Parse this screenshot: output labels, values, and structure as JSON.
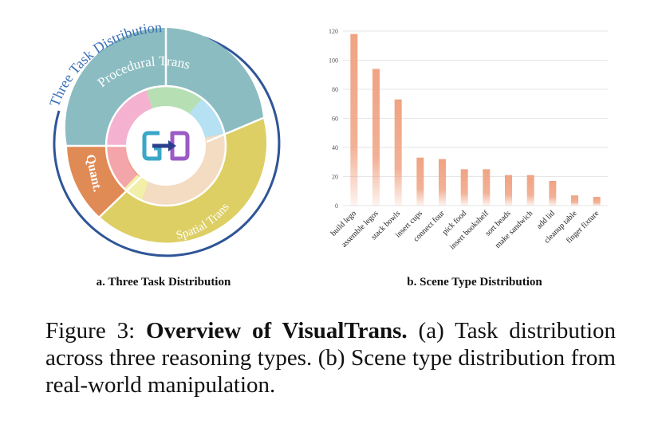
{
  "panel_a": {
    "arc_title": "Three Task Distribution",
    "subtitle": "a. Three Task Distribution",
    "segments": [
      "Procedural Trans",
      "Spatial Trans",
      "Quant."
    ],
    "colors": {
      "procedural": "#8bbcc1",
      "spatial": "#ddcf63",
      "quant": "#e08a55",
      "arc": "#2f5597",
      "title": "#3a6fb6"
    }
  },
  "panel_b": {
    "subtitle": "b. Scene Type Distribution",
    "bar_color": "#f0a383"
  },
  "chart_data": {
    "type": "bar",
    "categories": [
      "build lego",
      "assemble legos",
      "stack bowls",
      "insert cups",
      "connect four",
      "pick food",
      "insert bookshelf",
      "sort beads",
      "make sandwich",
      "add lid",
      "cleanup table",
      "finger fixture"
    ],
    "values": [
      118,
      94,
      73,
      33,
      32,
      25,
      25,
      21,
      21,
      17,
      7,
      6
    ],
    "yticks": [
      0,
      20,
      40,
      60,
      80,
      100,
      120
    ],
    "ylim": [
      0,
      120
    ],
    "grid": true
  },
  "caption": {
    "label": "Figure 3:",
    "title": "Overview of VisualTrans.",
    "text": "(a) Task distribution across three reasoning types. (b) Scene type distribution from real-world manipulation."
  }
}
